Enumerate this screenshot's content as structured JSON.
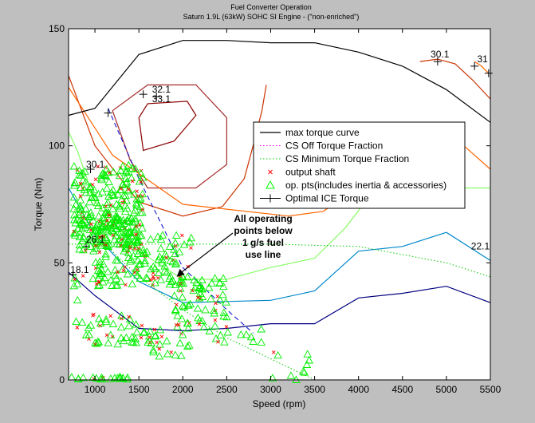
{
  "figure": {
    "title": "Fuel Converter Operation",
    "subtitle": "Saturn 1.9L (63kW) SOHC SI Engine - (\"non-enriched\")",
    "background": "#bfbfbf",
    "axes_background": "#ffffff"
  },
  "chart_data": {
    "type": "line",
    "title": "Fuel Converter Operation",
    "subtitle": "Saturn 1.9L (63kW) SOHC SI Engine - (\"non-enriched\")",
    "xlabel": "Speed (rpm)",
    "ylabel": "Torque (Nm)",
    "xlim": [
      700,
      5500
    ],
    "ylim": [
      0,
      150
    ],
    "xticks": [
      1000,
      1500,
      2000,
      2500,
      3000,
      3500,
      4000,
      4500,
      5000,
      5500
    ],
    "yticks": [
      0,
      50,
      100,
      150
    ],
    "grid": false,
    "legend_position": "upper-right",
    "legend": [
      {
        "label": "max torque curve",
        "color": "#000000",
        "style": "solid"
      },
      {
        "label": "CS Off Torque Fraction",
        "color": "#ff00ff",
        "style": "dotted"
      },
      {
        "label": "CS Minimum Torque Fraction",
        "color": "#00cc00",
        "style": "dotted"
      },
      {
        "label": "output shaft",
        "color": "#ff0000",
        "style": "x-marker"
      },
      {
        "label": "op. pts(includes inertia & accessories)",
        "color": "#00ff00",
        "style": "triangle-marker"
      },
      {
        "label": "Optimal ICE Torque",
        "color": "#000000",
        "style": "plus-line"
      }
    ],
    "max_torque_curve": {
      "x": [
        700,
        1000,
        1500,
        2000,
        2500,
        3000,
        3500,
        4000,
        4500,
        5000,
        5500
      ],
      "y": [
        113,
        116,
        139,
        145,
        145,
        144,
        144,
        140,
        134,
        124,
        110
      ]
    },
    "efficiency_contours": [
      {
        "label": "33.1",
        "color": "#8b0000",
        "x": [
          1500,
          1600,
          2050,
          2150,
          1900,
          1550,
          1500
        ],
        "y": [
          112,
          118,
          119,
          113,
          102,
          98,
          112
        ]
      },
      {
        "label": "32.1",
        "color": "#a52a2a",
        "x": [
          1200,
          1600,
          2150,
          2500,
          2500,
          2150,
          1600,
          1400,
          1200
        ],
        "y": [
          115,
          126,
          126,
          112,
          92,
          82,
          82,
          94,
          115
        ]
      },
      {
        "label": "",
        "color": "#cc3300",
        "x": [
          700,
          1000,
          1500,
          2000,
          2450,
          2700,
          2800,
          2900,
          2950
        ],
        "y": [
          130,
          100,
          76,
          70,
          74,
          86,
          100,
          115,
          126
        ]
      },
      {
        "label": "30.1",
        "color": "#cc3300",
        "x": [
          4700,
          4900,
          5100,
          5300,
          5500
        ],
        "y": [
          136,
          137,
          135,
          128,
          120
        ]
      },
      {
        "label": "",
        "color": "#ff6600",
        "x": [
          700,
          1200,
          2000,
          3200,
          3600,
          3900,
          4200,
          4600,
          4900,
          5200,
          5500
        ],
        "y": [
          125,
          96,
          75,
          70,
          72,
          80,
          94,
          104,
          108,
          100,
          90
        ]
      },
      {
        "label": "31",
        "color": "#ff6600",
        "x": [
          5320,
          5400,
          5480
        ],
        "y": [
          136,
          134,
          131
        ]
      },
      {
        "label": "",
        "color": "#88ff66",
        "x": [
          700,
          800,
          1000,
          1500,
          2000,
          2500,
          3000,
          3500,
          3850,
          4200,
          5000,
          5500
        ],
        "y": [
          106,
          98,
          76,
          55,
          43,
          43,
          48,
          52,
          65,
          82,
          82,
          82
        ]
      },
      {
        "label": "22.1",
        "color": "#0088cc",
        "x": [
          700,
          1000,
          1500,
          2000,
          3000,
          3500,
          4000,
          4500,
          5000,
          5500
        ],
        "y": [
          82,
          62,
          42,
          33,
          34,
          38,
          55,
          57,
          63,
          51
        ]
      },
      {
        "label": "18.1",
        "color": "#000080",
        "x": [
          700,
          1000,
          1500,
          2000,
          2500,
          3000,
          3500,
          4000,
          4500,
          5000,
          5500
        ],
        "y": [
          46,
          36,
          22,
          21,
          22,
          24,
          24,
          35,
          37,
          40,
          33
        ]
      }
    ],
    "cs_off_torque_fraction": {
      "x": [
        700,
        1500,
        3000,
        4000,
        5000,
        5500
      ],
      "y": [
        58,
        58,
        58,
        57,
        50,
        44
      ]
    },
    "cs_min_torque_fraction": {
      "x": [
        700,
        1000,
        1500,
        2000,
        2500,
        3000,
        3500
      ],
      "y": [
        76,
        62,
        44,
        30,
        18,
        9,
        0
      ]
    },
    "dashed_boundary": {
      "x": [
        1150,
        1500,
        2000,
        2500,
        2800
      ],
      "y": [
        116,
        86,
        48,
        30,
        20
      ]
    },
    "optimal_ice_torque": {
      "x": [
        750,
        900,
        950,
        1150,
        1550,
        1700,
        4900,
        5320,
        5480
      ],
      "y": [
        45,
        57,
        90,
        114,
        122,
        121,
        136,
        134,
        131
      ]
    },
    "contour_labels": [
      {
        "text": "33.1",
        "x": 1650,
        "y": 118
      },
      {
        "text": "32.1",
        "x": 1650,
        "y": 122
      },
      {
        "text": "30.1",
        "x": 900,
        "y": 90
      },
      {
        "text": "26.1",
        "x": 900,
        "y": 58
      },
      {
        "text": "18.1",
        "x": 720,
        "y": 45
      },
      {
        "text": "30.1",
        "x": 4820,
        "y": 137
      },
      {
        "text": "31",
        "x": 5350,
        "y": 135
      },
      {
        "text": "22.1",
        "x": 5280,
        "y": 55
      }
    ],
    "annotation": {
      "text": [
        "All operating",
        "points below",
        "1 g/s fuel",
        "use line"
      ],
      "arrow_target_x": 1930,
      "arrow_target_y": 44
    }
  }
}
